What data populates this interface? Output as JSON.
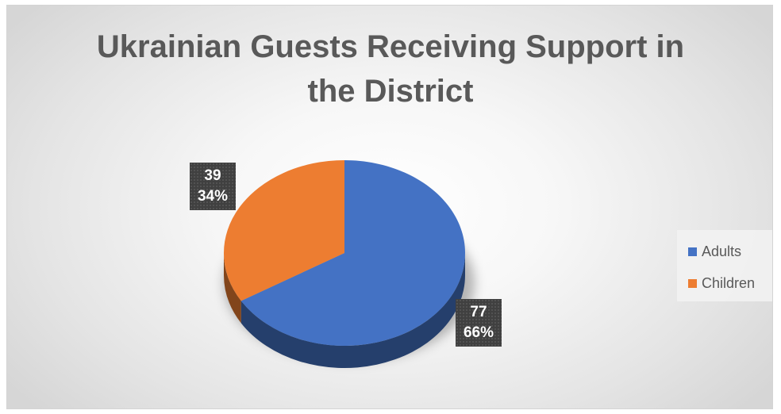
{
  "chart_data": {
    "type": "pie",
    "title": "Ukrainian Guests Receiving Support in the District",
    "title_lines": [
      "Ukrainian Guests Receiving Support in",
      "the District"
    ],
    "slices": [
      {
        "label": "Adults",
        "value": 77,
        "percent": "66%",
        "color": "#4472c4"
      },
      {
        "label": "Children",
        "value": 39,
        "percent": "34%",
        "color": "#ed7d31"
      }
    ],
    "legend_position": "right",
    "style": "3d",
    "data_labels": [
      {
        "value": "77",
        "percent": "66%"
      },
      {
        "value": "39",
        "percent": "34%"
      }
    ],
    "legend": [
      {
        "label": "Adults",
        "color": "#4472c4"
      },
      {
        "label": "Children",
        "color": "#ed7d31"
      }
    ]
  }
}
